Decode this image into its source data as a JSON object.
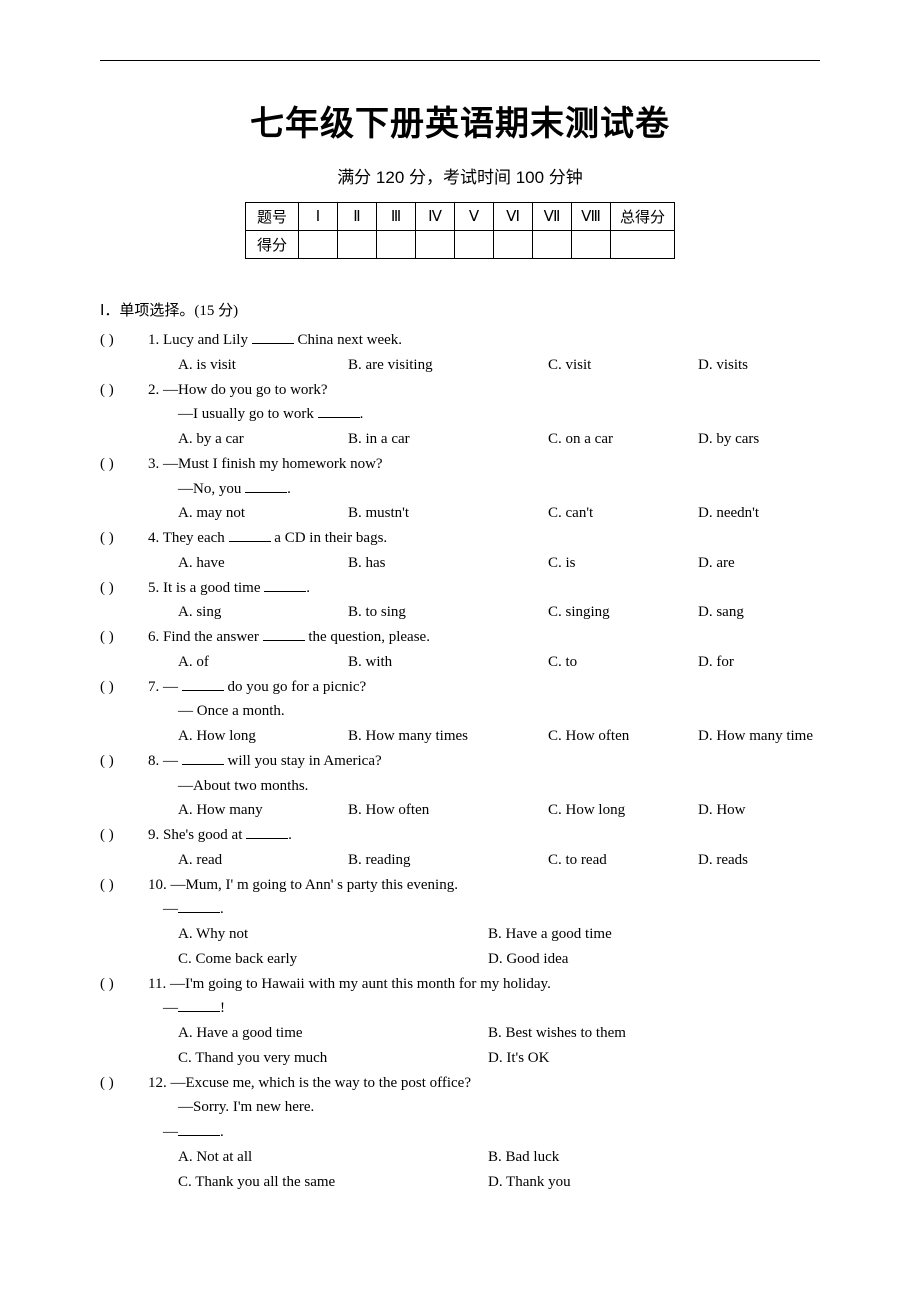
{
  "header": {
    "title": "七年级下册英语期末测试卷",
    "subtitle": "满分 120 分，考试时间 100 分钟"
  },
  "score_table": {
    "row1": [
      "题号",
      "Ⅰ",
      "Ⅱ",
      "Ⅲ",
      "Ⅳ",
      "Ⅴ",
      "Ⅵ",
      "Ⅶ",
      "Ⅷ",
      "总得分"
    ],
    "row2_label": "得分"
  },
  "section1": {
    "title": "Ⅰ．单项选择。(15 分)"
  },
  "paren_text": "(        )",
  "q1": {
    "num": "1. ",
    "text_a": "Lucy and Lily ",
    "text_b": " China next week.",
    "A": "A. is visit",
    "B": "B. are visiting",
    "C": "C. visit",
    "D": "D. visits"
  },
  "q2": {
    "num": "2. ",
    "line1": "—How do you go to work?",
    "line2a": "—I usually go to work ",
    "line2b": ".",
    "A": "A. by a car",
    "B": "B. in a car",
    "C": "C. on a car",
    "D": "D. by cars"
  },
  "q3": {
    "num": "3. ",
    "line1": "—Must I finish my homework now?",
    "line2a": "—No, you ",
    "line2b": ".",
    "A": "A. may not",
    "B": "B. mustn't",
    "C": "C. can't",
    "D": "D. needn't"
  },
  "q4": {
    "num": "4. ",
    "text_a": "  They each ",
    "text_b": " a CD in their bags.",
    "A": "A. have",
    "B": "B. has",
    "C": "C. is",
    "D": "D. are"
  },
  "q5": {
    "num": "5. ",
    "text_a": "It is a good time ",
    "text_b": ".",
    "A": "A. sing",
    "B": "B. to sing",
    "C": "C. singing",
    "D": "D. sang"
  },
  "q6": {
    "num": "6. ",
    "text_a": "Find the answer ",
    "text_b": " the question, please.",
    "A": "A. of",
    "B": "B. with",
    "C": "C. to",
    "D": "D. for"
  },
  "q7": {
    "num": "7. ",
    "line1a": "— ",
    "line1b": " do you go for a picnic?",
    "line2": "— Once a month.",
    "A": "A. How long",
    "B": "B. How many times",
    "C": "C. How often",
    "D": "D. How many time"
  },
  "q8": {
    "num": "8. ",
    "line1a": "— ",
    "line1b": " will you stay in America?",
    "line2": "—About two months.",
    "A": "A. How many",
    "B": "B. How often",
    "C": "C. How long",
    "D": "D. How"
  },
  "q9": {
    "num": "9. ",
    "text_a": "She's good at ",
    "text_b": ".",
    "A": "A. read",
    "B": "B. reading",
    "C": "C. to read",
    "D": "D. reads"
  },
  "q10": {
    "num": "10. ",
    "line1": "—Mum, I' m going to Ann' s party this evening.",
    "line2a": "—",
    "line2b": ".",
    "A": "A. Why not",
    "B": "B. Have a good time",
    "C": "C. Come back early",
    "D": "D. Good idea"
  },
  "q11": {
    "num": "11. ",
    "line1": "—I'm going to Hawaii with my aunt this month for my holiday.",
    "line2a": "—",
    "line2b": "!",
    "A": "A. Have a good time",
    "B": "B. Best wishes to them",
    "C": "C. Thand you very much",
    "D": "D. It's OK"
  },
  "q12": {
    "num": "12. ",
    "line1": "—Excuse me, which is the way to the post office?",
    "line2": "—Sorry. I'm new here.",
    "line3a": "—",
    "line3b": ".",
    "A": "A. Not at all",
    "B": "B. Bad luck",
    "C": "C. Thank you all the same",
    "D": "D. Thank you"
  }
}
